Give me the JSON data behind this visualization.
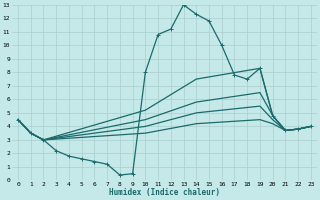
{
  "xlabel": "Humidex (Indice chaleur)",
  "background_color": "#c5e8e8",
  "line_color": "#1a6b6b",
  "grid_color": "#aacfcf",
  "xlim": [
    -0.5,
    23.5
  ],
  "ylim": [
    0,
    13
  ],
  "xticks": [
    0,
    1,
    2,
    3,
    4,
    5,
    6,
    7,
    8,
    9,
    10,
    11,
    12,
    13,
    14,
    15,
    16,
    17,
    18,
    19,
    20,
    21,
    22,
    23
  ],
  "yticks": [
    0,
    1,
    2,
    3,
    4,
    5,
    6,
    7,
    8,
    9,
    10,
    11,
    12,
    13
  ],
  "lines": [
    {
      "x": [
        0,
        1,
        2,
        3,
        4,
        5,
        6,
        7,
        8,
        9,
        10,
        11,
        12,
        13,
        14,
        15,
        16,
        17,
        18,
        19,
        20,
        21,
        22,
        23
      ],
      "y": [
        4.5,
        3.5,
        3.0,
        2.2,
        1.8,
        1.6,
        1.4,
        1.2,
        0.4,
        0.5,
        8.0,
        10.8,
        11.2,
        13.0,
        12.3,
        11.8,
        10.0,
        7.8,
        7.5,
        8.3,
        4.8,
        3.7,
        3.8,
        4.0
      ],
      "marker": true,
      "linewidth": 0.9
    },
    {
      "x": [
        0,
        1,
        2,
        10,
        14,
        19,
        20,
        21,
        22,
        23
      ],
      "y": [
        4.5,
        3.5,
        3.0,
        5.2,
        7.5,
        8.3,
        4.8,
        3.7,
        3.8,
        4.0
      ],
      "marker": false,
      "linewidth": 0.9
    },
    {
      "x": [
        0,
        1,
        2,
        10,
        14,
        19,
        20,
        21,
        22,
        23
      ],
      "y": [
        4.5,
        3.5,
        3.0,
        4.5,
        5.8,
        6.5,
        4.8,
        3.7,
        3.8,
        4.0
      ],
      "marker": false,
      "linewidth": 0.9
    },
    {
      "x": [
        0,
        1,
        2,
        10,
        14,
        19,
        20,
        21,
        22,
        23
      ],
      "y": [
        4.5,
        3.5,
        3.0,
        4.0,
        5.0,
        5.5,
        4.5,
        3.7,
        3.8,
        4.0
      ],
      "marker": false,
      "linewidth": 0.9
    },
    {
      "x": [
        0,
        1,
        2,
        10,
        14,
        19,
        20,
        21,
        22,
        23
      ],
      "y": [
        4.5,
        3.5,
        3.0,
        3.5,
        4.2,
        4.5,
        4.2,
        3.7,
        3.8,
        4.0
      ],
      "marker": false,
      "linewidth": 0.9
    }
  ]
}
